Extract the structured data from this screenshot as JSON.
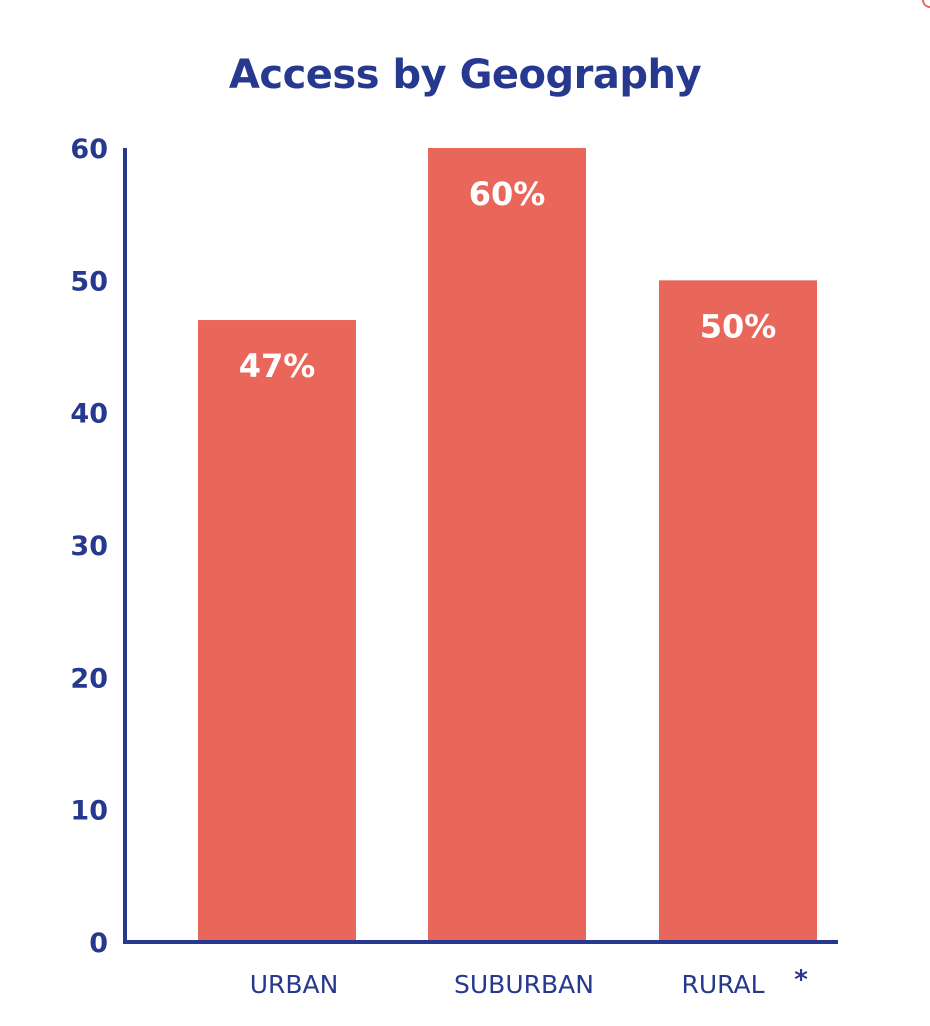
{
  "chart_data": {
    "type": "bar",
    "title": "Access by Geography",
    "categories": [
      "URBAN",
      "SUBURBAN",
      "RURAL"
    ],
    "category_notes": [
      "",
      "",
      "*"
    ],
    "values": [
      47,
      60,
      50
    ],
    "data_labels": [
      "47%",
      "60%",
      "50%"
    ],
    "yticks": [
      "0",
      "10",
      "20",
      "30",
      "40",
      "50",
      "60"
    ],
    "ylim": [
      0,
      60
    ],
    "xlabel": "",
    "ylabel": "",
    "grid": false,
    "legend": "none",
    "colors": {
      "bar": "#e9665a",
      "axis": "#26398f",
      "text": "#26398f",
      "data_label": "#ffffff"
    }
  }
}
